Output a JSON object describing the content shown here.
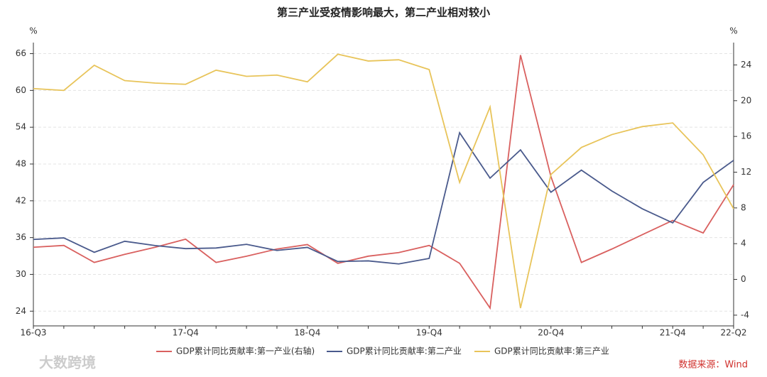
{
  "chart_data": {
    "type": "line",
    "title": "第三产业受疫情影响最大，第二产业相对较小",
    "y_unit": "%",
    "y2_unit": "%",
    "categories": [
      "16-Q3",
      null,
      null,
      null,
      null,
      "17-Q4",
      null,
      null,
      null,
      "18-Q4",
      null,
      null,
      null,
      "19-Q4",
      null,
      null,
      null,
      "20-Q4",
      null,
      null,
      null,
      "21-Q4",
      null,
      "22-Q2"
    ],
    "ylim": [
      21.6,
      67.8
    ],
    "yticks": [
      24,
      30,
      36,
      42,
      48,
      54,
      60,
      66
    ],
    "y2lim": [
      -5.2,
      26.5
    ],
    "y2ticks": [
      -4,
      0,
      4,
      8,
      12,
      16,
      20,
      24
    ],
    "grid": true,
    "series": [
      {
        "name": "GDP累计同比贡献率:第一产业(右轴)",
        "color": "#d9605f",
        "axis": "y2",
        "values": [
          3.6,
          3.8,
          1.9,
          2.8,
          3.6,
          4.5,
          1.9,
          2.6,
          3.4,
          3.9,
          1.8,
          2.6,
          3.0,
          3.8,
          1.8,
          -3.2,
          25.1,
          11.5,
          1.9,
          3.4,
          5.0,
          6.6,
          5.2,
          10.6
        ]
      },
      {
        "name": "GDP累计同比贡献率:第二产业",
        "color": "#4a5a8c",
        "values": [
          35.7,
          35.95,
          33.6,
          35.4,
          34.7,
          34.2,
          34.3,
          34.9,
          33.9,
          34.4,
          32.1,
          32.2,
          31.7,
          32.6,
          53.1,
          45.7,
          50.3,
          43.4,
          47.0,
          43.6,
          40.7,
          38.4,
          45.0,
          48.6
        ]
      },
      {
        "name": "GDP累计同比贡献率:第三产业",
        "color": "#e8c45a",
        "values": [
          60.3,
          60.0,
          64.1,
          61.6,
          61.2,
          61.0,
          63.3,
          62.3,
          62.5,
          61.4,
          65.9,
          64.8,
          65.0,
          63.4,
          45.0,
          57.3,
          24.5,
          46.3,
          50.7,
          52.8,
          54.1,
          54.7,
          49.5,
          40.7
        ]
      }
    ],
    "source": "数据来源：Wind",
    "watermark": "大数跨境"
  }
}
